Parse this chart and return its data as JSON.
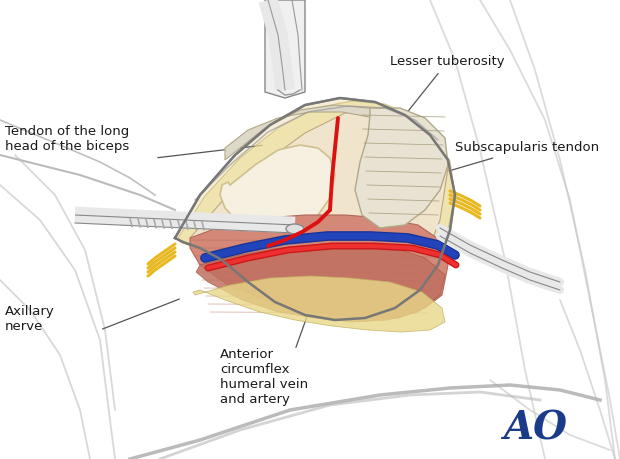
{
  "bg_color": "#ffffff",
  "labels": {
    "lesser_tuberosity": "Lesser tuberosity",
    "subscapularis": "Subscapularis tendon",
    "tendon_long_head": "Tendon of the long\nhead of the biceps",
    "axillary_nerve": "Axillary\nnerve",
    "anterior_circumflex": "Anterior\ncircumflex\nhumeral vein\nand artery",
    "ao_logo": "AO"
  },
  "ao_color": "#1a3a8a",
  "label_color": "#1a1a1a",
  "skin_light": "#f0e8d0",
  "muscle_pink": "#d4826a",
  "muscle_light": "#e8a090",
  "muscle_stripe": "#c06858",
  "bone_cream": "#f2e8c8",
  "bone_white": "#f8f4ec",
  "tendon_white": "#e8e4d8",
  "fat_yellow": "#f0d878",
  "blue_vein": "#2244aa",
  "blue_vein2": "#4466cc",
  "red_artery": "#cc2020",
  "yellow_nerve": "#e8b820",
  "gray_retractor": "#d8d8d8",
  "dark_line": "#444444",
  "mid_line": "#888888",
  "light_line": "#bbbbbb",
  "incision_red": "#dd1111",
  "body_gray": "#c0c0c0"
}
